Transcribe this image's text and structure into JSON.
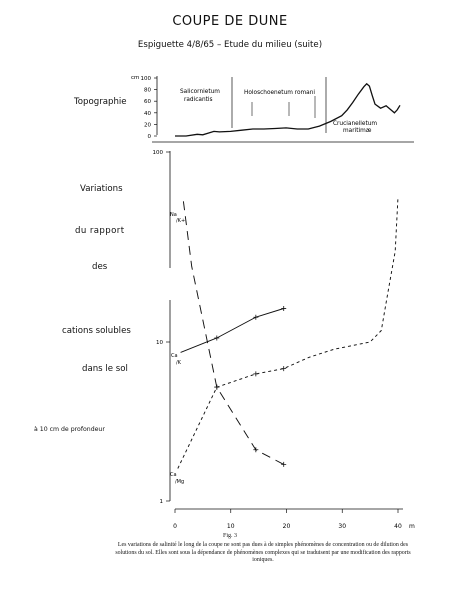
{
  "page": {
    "title": "COUPE DE DUNE",
    "subtitle": "Espiguette 4/8/65  –  Etude du milieu (suite)",
    "figure_label": "Fig. 3",
    "caption": "Les variations de salinité le long de la coupe ne sont pas dues à de simples phénomènes de concentration ou de dilution des solutions du sol. Elles sont sous la dépendance de phénomènes complexes qui se traduisent par une modification des rapports ioniques."
  },
  "labels": {
    "topographie": "Topographie",
    "var1": "Variations",
    "var2": "du    rapport",
    "var3": "des",
    "var4": "cations solubles",
    "var5": "dans  le sol",
    "depth": "à 10 cm de   profondeur"
  },
  "chart_data": [
    {
      "type": "area",
      "title": "Topographie",
      "ylabel": "cm",
      "ylim": [
        0,
        100
      ],
      "y_ticks": [
        "100",
        "80",
        "60",
        "40",
        "20",
        "0"
      ],
      "zones": [
        "Salicornietum radicantis",
        "Holoschoenetum romani",
        "Crucianelletum maritimae"
      ],
      "x": [
        0,
        2,
        4,
        5,
        6,
        7,
        8,
        10,
        12,
        14,
        16,
        18,
        20,
        22,
        24,
        26,
        28,
        30,
        31,
        32,
        33,
        34,
        34.5,
        35,
        35.5,
        36,
        37,
        38,
        39,
        39.5,
        40,
        40.5
      ],
      "values": [
        0,
        0,
        3,
        2,
        5,
        8,
        7,
        8,
        10,
        12,
        12,
        13,
        14,
        12,
        12,
        17,
        25,
        35,
        45,
        58,
        72,
        85,
        90,
        86,
        70,
        55,
        48,
        52,
        44,
        40,
        45,
        53
      ]
    },
    {
      "type": "line",
      "title": "Variations du rapport des cations solubles dans le sol à 10 cm de profondeur",
      "y_scale": "log",
      "ylim": [
        1,
        100
      ],
      "y_ticks": [
        "100",
        "10",
        "1"
      ],
      "x_ticks": [
        "0",
        "10",
        "20",
        "30",
        "40"
      ],
      "x_unit": "m",
      "xlim": [
        0,
        40
      ],
      "series": [
        {
          "name": "Na/K",
          "style": "long-dash",
          "x": [
            1.5,
            3,
            7.5,
            14.5,
            19.5
          ],
          "values": [
            55,
            25,
            5.2,
            2.1,
            1.7
          ]
        },
        {
          "name": "Ca/K",
          "style": "solid",
          "x": [
            1,
            7.5,
            14.5,
            19.5
          ],
          "values": [
            8.6,
            10.5,
            13.5,
            15
          ]
        },
        {
          "name": "Ca/Mg",
          "style": "short-dash",
          "x": [
            0.5,
            7.5,
            14.5,
            19.5,
            24,
            28.5,
            35,
            37,
            38,
            39.5,
            40
          ],
          "values": [
            1.6,
            5.2,
            6.3,
            6.8,
            8,
            9,
            10,
            11.5,
            17,
            30,
            58
          ]
        }
      ]
    }
  ]
}
